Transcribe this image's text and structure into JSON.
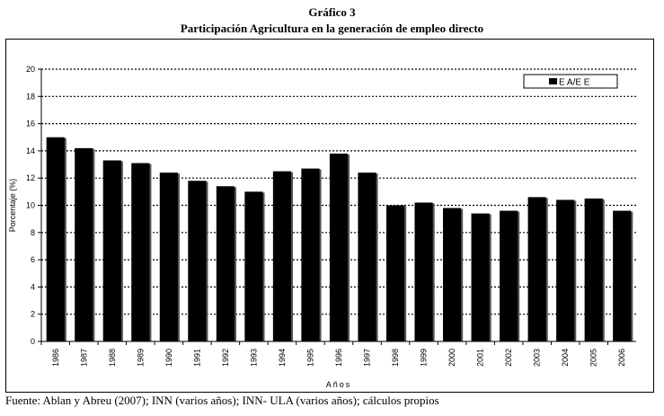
{
  "header": {
    "title": "Gráfico 3",
    "subtitle": "Participación Agricultura en la generación de empleo directo"
  },
  "footer": {
    "source": "Fuente: Ablan y Abreu (2007); INN (varios años); INN- ULA (varios años); cálculos propios"
  },
  "chart_data": {
    "type": "bar",
    "title": "",
    "xlabel": "Años",
    "ylabel": "Porcentaje (%)",
    "ylim": [
      0,
      20
    ],
    "yticks": [
      0,
      2,
      4,
      6,
      8,
      10,
      12,
      14,
      16,
      18,
      20
    ],
    "grid": "horizontal dotted",
    "legend_position": "top-right",
    "bar_color": "#000000",
    "categories": [
      "1986",
      "1987",
      "1988",
      "1989",
      "1990",
      "1991",
      "1992",
      "1993",
      "1994",
      "1995",
      "1996",
      "1997",
      "1998",
      "1999",
      "2000",
      "2001",
      "2002",
      "2003",
      "2004",
      "2005",
      "2006"
    ],
    "series": [
      {
        "name": "E A/E E",
        "values": [
          15.0,
          14.2,
          13.3,
          13.1,
          12.4,
          11.8,
          11.4,
          11.0,
          12.5,
          12.7,
          13.8,
          12.4,
          10.0,
          10.2,
          9.8,
          9.4,
          9.6,
          10.6,
          10.4,
          10.5,
          9.6
        ]
      }
    ]
  }
}
